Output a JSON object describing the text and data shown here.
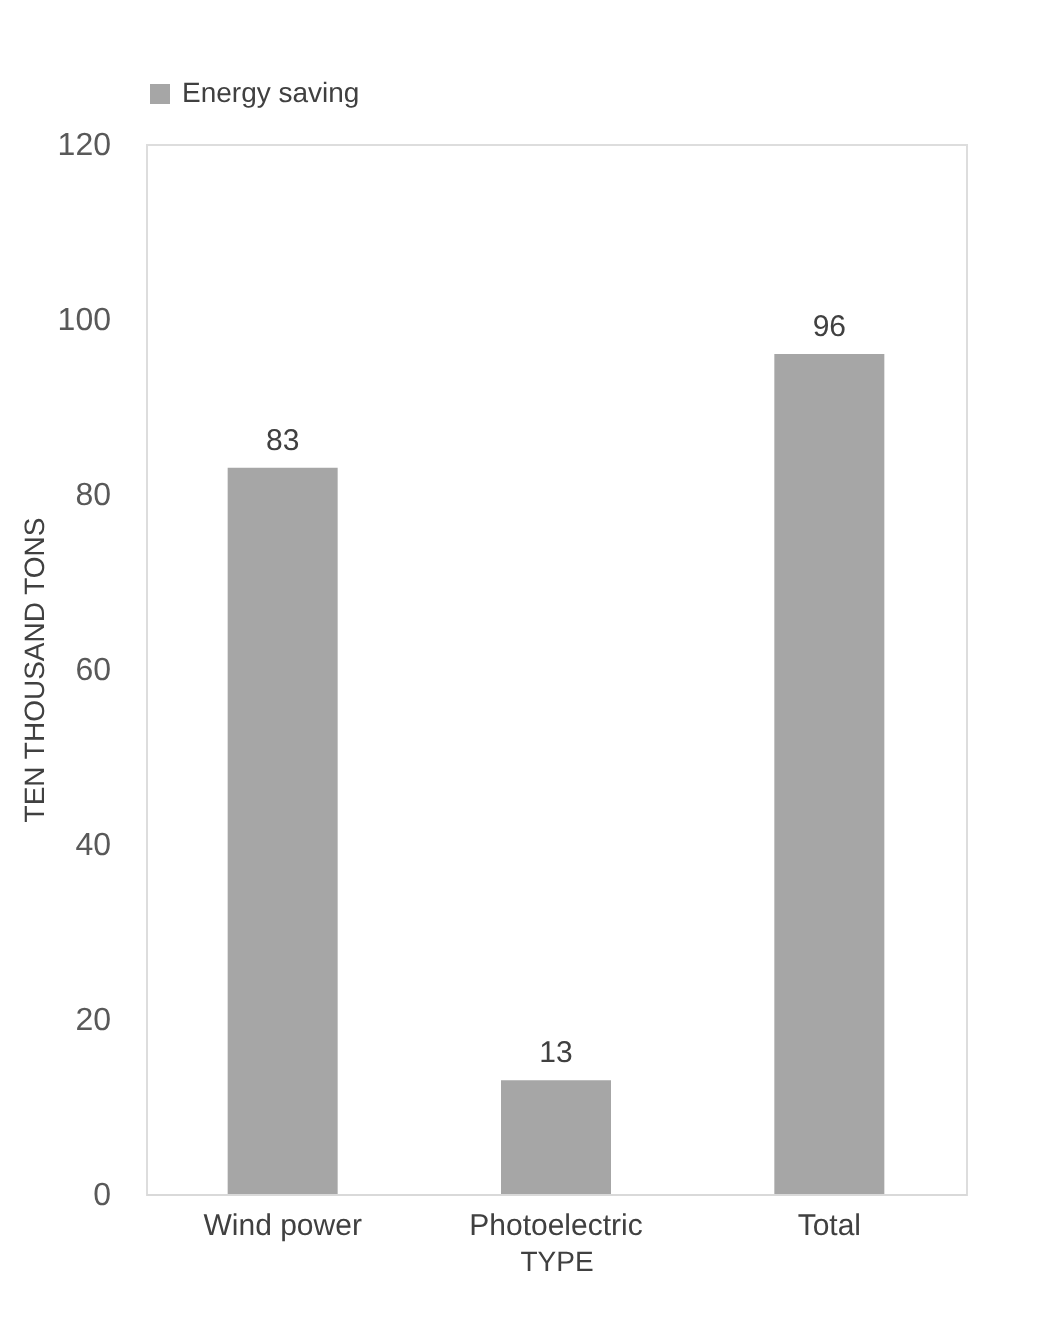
{
  "chart_data": {
    "type": "bar",
    "xlabel": "TYPE",
    "ylabel": "TEN THOUSAND TONS",
    "categories": [
      "Wind power",
      "Photoelectric",
      "Total"
    ],
    "series": [
      {
        "name": "Energy saving",
        "color": "#a6a6a6",
        "values": [
          83,
          13,
          96
        ]
      }
    ],
    "ylim": [
      0,
      120
    ],
    "yticks": [
      0,
      20,
      40,
      60,
      80,
      100,
      120
    ],
    "grid": false,
    "legend": "top",
    "data_labels": true
  }
}
